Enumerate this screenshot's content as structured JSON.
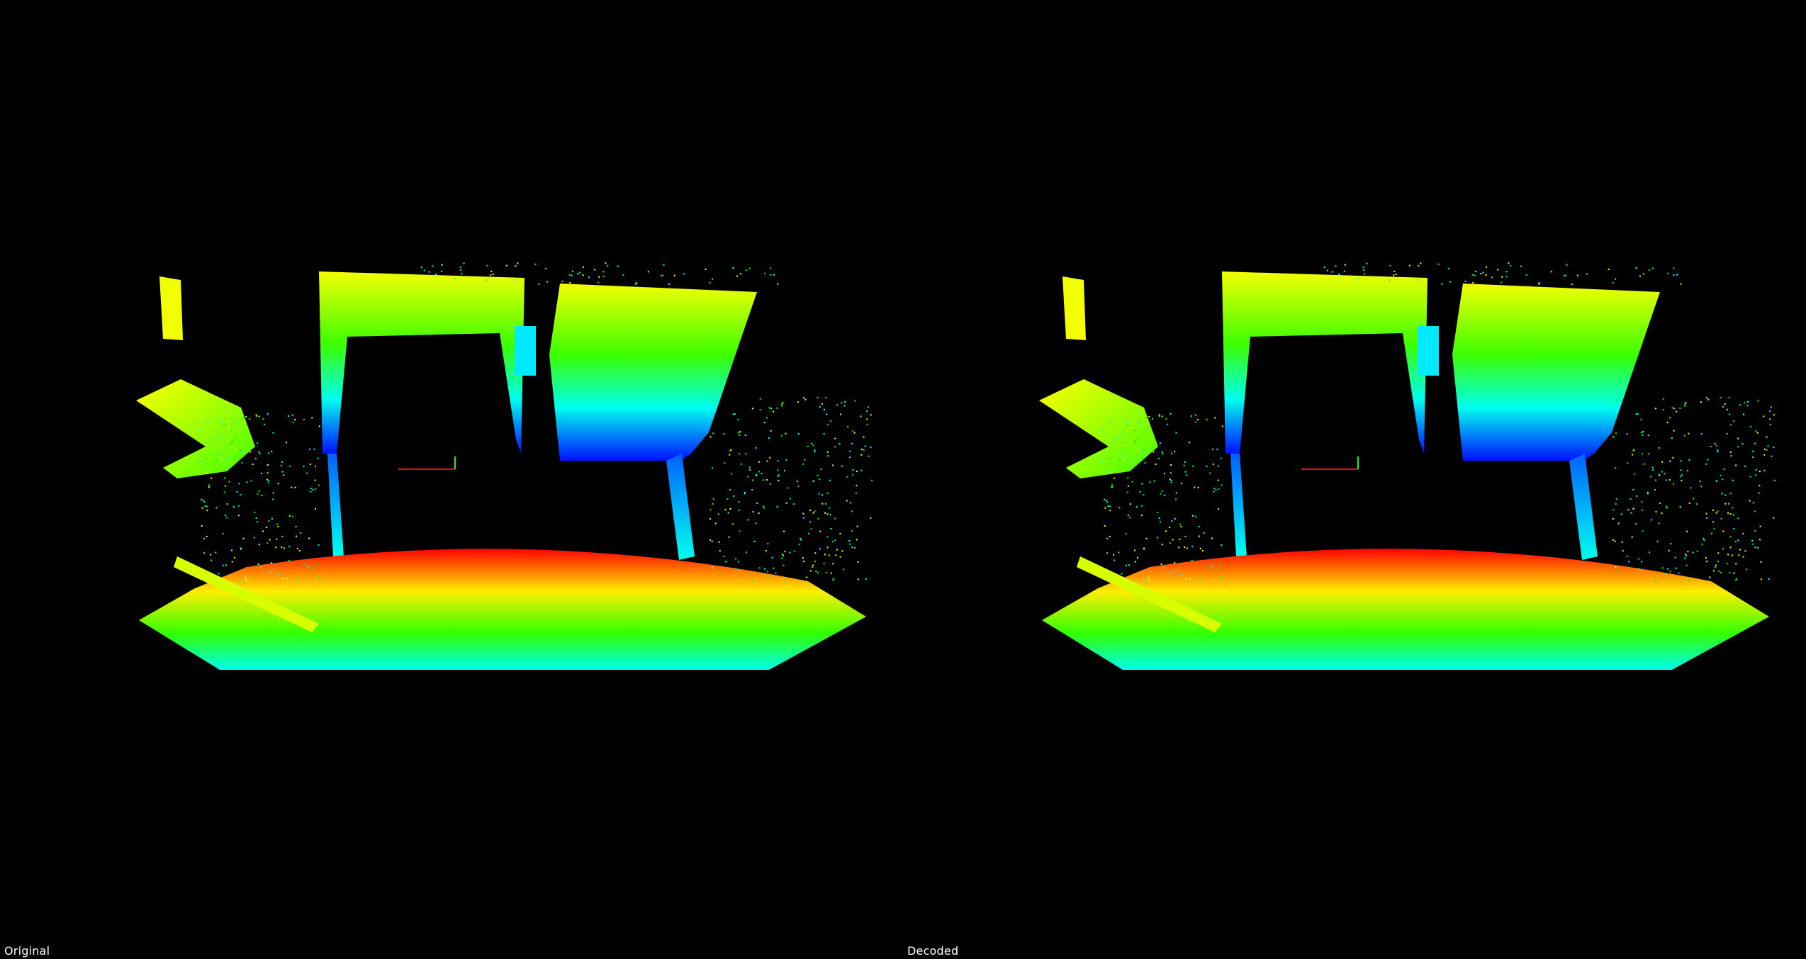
{
  "viewports": [
    {
      "id": "original",
      "label": "Original"
    },
    {
      "id": "decoded",
      "label": "Decoded"
    }
  ],
  "colormap": [
    "#ff0000",
    "#ffff00",
    "#00ff00",
    "#00ffff",
    "#0000ff"
  ],
  "axis_colors": {
    "x": "#ff0000",
    "y": "#00ff00"
  }
}
